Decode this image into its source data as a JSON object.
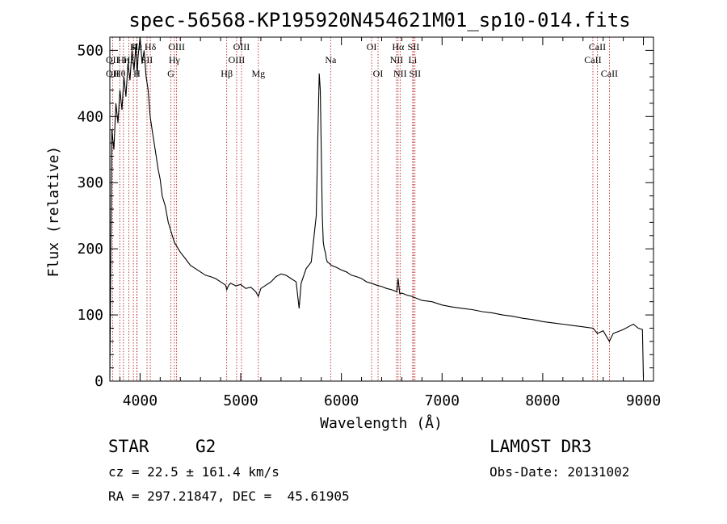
{
  "chart_data": {
    "type": "line",
    "title": "spec-56568-KP195920N454621M01_sp10-014.fits",
    "xlabel": "Wavelength (Å)",
    "ylabel": "Flux (relative)",
    "xlim": [
      3700,
      9100
    ],
    "ylim": [
      0,
      520
    ],
    "xticks": [
      4000,
      5000,
      6000,
      7000,
      8000,
      9000
    ],
    "yticks": [
      0,
      100,
      200,
      300,
      400,
      500
    ],
    "x_minor_step": 200,
    "y_minor_step": 20,
    "grid": false,
    "series": [
      {
        "name": "spectrum",
        "x": [
          3700,
          3710,
          3720,
          3740,
          3760,
          3780,
          3800,
          3820,
          3840,
          3860,
          3880,
          3900,
          3920,
          3940,
          3960,
          3970,
          3980,
          4000,
          4020,
          4040,
          4060,
          4080,
          4100,
          4120,
          4150,
          4180,
          4200,
          4220,
          4250,
          4280,
          4300,
          4320,
          4340,
          4360,
          4380,
          4400,
          4450,
          4500,
          4550,
          4600,
          4650,
          4700,
          4750,
          4800,
          4850,
          4861,
          4880,
          4900,
          4950,
          5000,
          5050,
          5100,
          5150,
          5175,
          5200,
          5250,
          5300,
          5350,
          5400,
          5450,
          5500,
          5550,
          5580,
          5600,
          5650,
          5700,
          5750,
          5770,
          5780,
          5790,
          5800,
          5810,
          5820,
          5830,
          5840,
          5850,
          5860,
          5880,
          5900,
          5950,
          6000,
          6050,
          6100,
          6150,
          6200,
          6250,
          6300,
          6350,
          6400,
          6450,
          6500,
          6550,
          6563,
          6580,
          6600,
          6650,
          6700,
          6750,
          6800,
          6900,
          7000,
          7100,
          7200,
          7300,
          7400,
          7500,
          7600,
          7700,
          7800,
          7900,
          8000,
          8100,
          8200,
          8300,
          8400,
          8500,
          8542,
          8600,
          8662,
          8700,
          8750,
          8800,
          8850,
          8900,
          8950,
          8990,
          9000
        ],
        "y": [
          5,
          200,
          380,
          350,
          420,
          390,
          440,
          410,
          460,
          430,
          480,
          455,
          500,
          470,
          510,
          460,
          490,
          520,
          480,
          500,
          460,
          440,
          400,
          380,
          350,
          320,
          305,
          280,
          265,
          240,
          230,
          220,
          210,
          205,
          200,
          195,
          185,
          175,
          170,
          165,
          160,
          158,
          155,
          150,
          145,
          138,
          145,
          148,
          144,
          146,
          140,
          142,
          135,
          128,
          140,
          145,
          150,
          158,
          162,
          160,
          155,
          150,
          110,
          148,
          170,
          180,
          250,
          400,
          465,
          440,
          350,
          250,
          210,
          200,
          195,
          185,
          180,
          178,
          175,
          172,
          168,
          165,
          160,
          158,
          155,
          150,
          148,
          145,
          143,
          140,
          138,
          135,
          155,
          132,
          133,
          130,
          128,
          125,
          122,
          120,
          115,
          112,
          110,
          108,
          105,
          103,
          100,
          98,
          95,
          93,
          90,
          88,
          86,
          84,
          82,
          80,
          72,
          76,
          60,
          72,
          75,
          78,
          82,
          86,
          80,
          78,
          5
        ]
      }
    ],
    "line_markers": [
      {
        "label": "Hε",
        "x": 3970,
        "row": 1
      },
      {
        "label": "K",
        "x": 3934,
        "row": 1
      },
      {
        "label": "Hδ",
        "x": 4102,
        "row": 1
      },
      {
        "label": "OII",
        "x": 3727,
        "row": 2
      },
      {
        "label": "Hη",
        "x": 3835,
        "row": 2
      },
      {
        "label": "Hζ",
        "x": 3889,
        "row": 2
      },
      {
        "label": "SII",
        "x": 4069,
        "row": 2
      },
      {
        "label": "OII",
        "x": 3727,
        "row": 3
      },
      {
        "label": "Hθ",
        "x": 3798,
        "row": 3
      },
      {
        "label": "H",
        "x": 3968,
        "row": 3
      },
      {
        "label": "OIII",
        "x": 4363,
        "row": 1
      },
      {
        "label": "Hγ",
        "x": 4341,
        "row": 2
      },
      {
        "label": "G",
        "x": 4305,
        "row": 3
      },
      {
        "label": "OIII",
        "x": 5007,
        "row": 1
      },
      {
        "label": "OIII",
        "x": 4959,
        "row": 2
      },
      {
        "label": "Hβ",
        "x": 4861,
        "row": 3
      },
      {
        "label": "Mg",
        "x": 5175,
        "row": 3
      },
      {
        "label": "Na",
        "x": 5893,
        "row": 2
      },
      {
        "label": "OI",
        "x": 6300,
        "row": 1
      },
      {
        "label": "OI",
        "x": 6364,
        "row": 3
      },
      {
        "label": "Hα",
        "x": 6563,
        "row": 1
      },
      {
        "label": "SII",
        "x": 6716,
        "row": 1
      },
      {
        "label": "NII",
        "x": 6548,
        "row": 2
      },
      {
        "label": "Li",
        "x": 6708,
        "row": 2
      },
      {
        "label": "NII",
        "x": 6583,
        "row": 3
      },
      {
        "label": "SII",
        "x": 6731,
        "row": 3
      },
      {
        "label": "CaII",
        "x": 8542,
        "row": 1
      },
      {
        "label": "CaII",
        "x": 8498,
        "row": 2
      },
      {
        "label": "CaII",
        "x": 8662,
        "row": 3
      }
    ]
  },
  "info": {
    "object_class": "STAR",
    "subclass": "G2",
    "survey": "LAMOST DR3",
    "cz": "cz = 22.5 ± 161.4 km/s",
    "obs_date": "Obs-Date: 20131002",
    "coords": "RA = 297.21847, DEC =  45.61905"
  },
  "colors": {
    "spectrum": "#000000",
    "marker_line": "#b01010",
    "axis": "#000000"
  }
}
